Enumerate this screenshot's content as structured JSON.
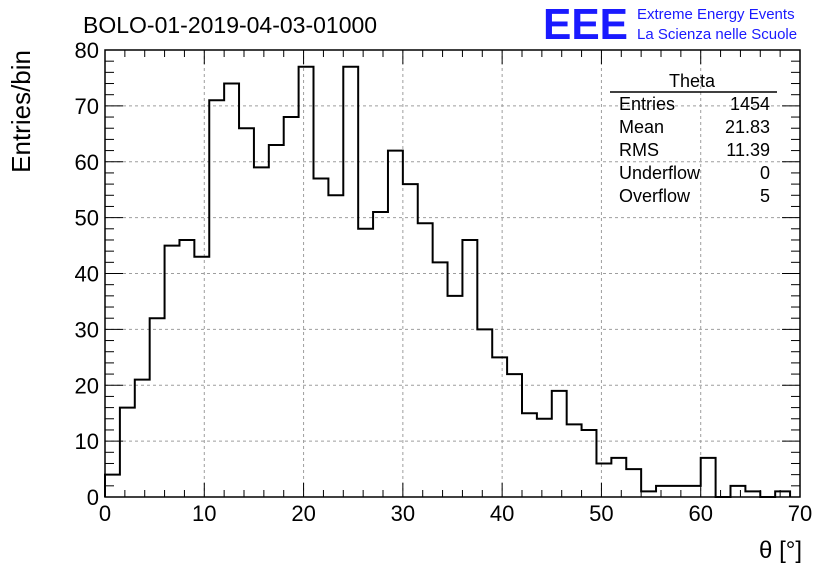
{
  "chart_data": {
    "type": "bar",
    "title": "BOLO-01-2019-04-03-01000",
    "xlabel": "θ [°]",
    "ylabel": "Entries/bin",
    "xlim": [
      0,
      70
    ],
    "ylim": [
      0,
      80
    ],
    "x_ticks": [
      "0",
      "10",
      "20",
      "30",
      "40",
      "50",
      "60",
      "70"
    ],
    "y_ticks": [
      "0",
      "10",
      "20",
      "30",
      "40",
      "50",
      "60",
      "70",
      "80"
    ],
    "grid": true,
    "bin_width": 1.5,
    "bin_start": 0,
    "values": [
      4,
      16,
      21,
      32,
      45,
      46,
      43,
      71,
      74,
      66,
      59,
      63,
      68,
      77,
      57,
      54,
      77,
      48,
      51,
      62,
      56,
      49,
      42,
      36,
      46,
      30,
      25,
      22,
      15,
      14,
      19,
      13,
      12,
      6,
      7,
      5,
      1,
      2,
      2,
      2,
      7,
      0,
      2,
      1,
      0,
      1
    ],
    "stats_box": {
      "title": "Theta",
      "rows": [
        {
          "label": "Entries",
          "value": "1454"
        },
        {
          "label": "Mean",
          "value": "21.83"
        },
        {
          "label": "RMS",
          "value": "11.39"
        },
        {
          "label": "Underflow",
          "value": "0"
        },
        {
          "label": "Overflow",
          "value": "5"
        }
      ],
      "position": "top-right"
    }
  },
  "logo": {
    "mark": "EEE",
    "line1": "Extreme Energy Events",
    "line2": "La Scienza nelle Scuole",
    "color": "#1a1aff"
  },
  "colors": {
    "histogram": "#000000",
    "grid": "#9e9e9e"
  }
}
